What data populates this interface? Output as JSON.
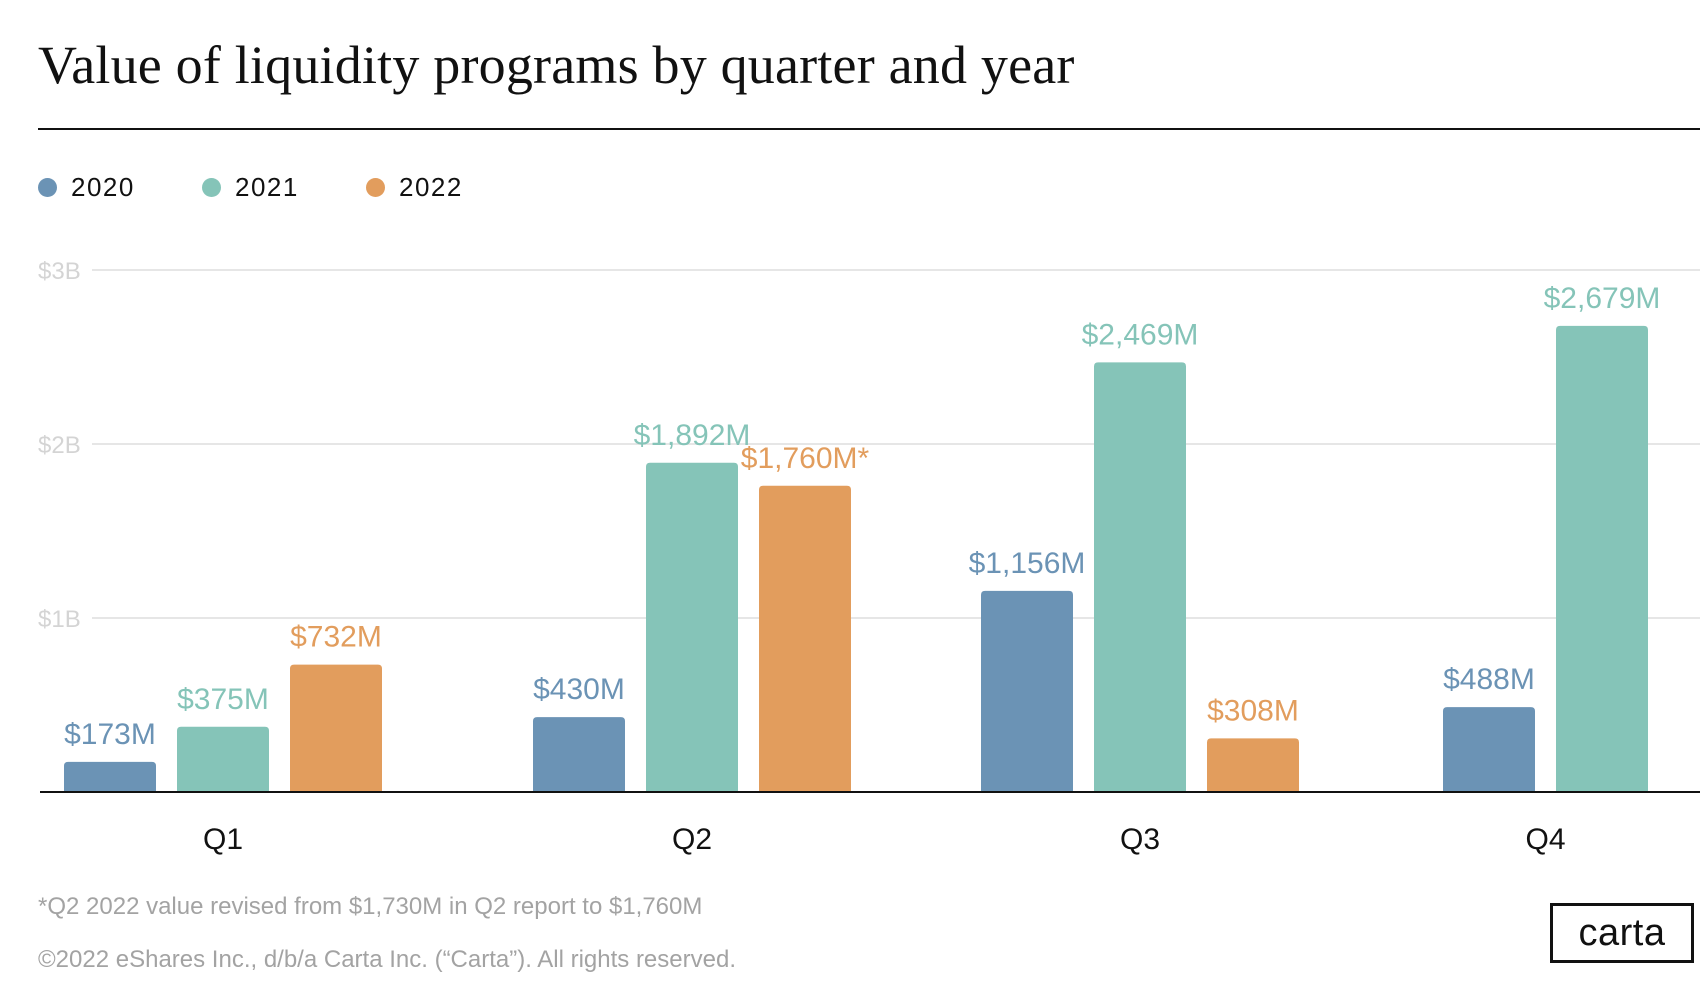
{
  "chart_data": {
    "type": "bar",
    "title": "Value of liquidity programs by quarter and year",
    "xlabel": "",
    "ylabel": "",
    "categories": [
      "Q1",
      "Q2",
      "Q3",
      "Q4"
    ],
    "series": [
      {
        "name": "2020",
        "color": "#6b93b5",
        "values": [
          173,
          430,
          1156,
          488
        ],
        "labels": [
          "$173M",
          "$430M",
          "$1,156M",
          "$488M"
        ]
      },
      {
        "name": "2021",
        "color": "#85c4b8",
        "values": [
          375,
          1892,
          2469,
          2679
        ],
        "labels": [
          "$375M",
          "$1,892M",
          "$2,469M",
          "$2,679M"
        ]
      },
      {
        "name": "2022",
        "color": "#e29d5d",
        "values": [
          732,
          1760,
          308,
          null
        ],
        "labels": [
          "$732M",
          "$1,760M*",
          "$308M",
          null
        ]
      }
    ],
    "ylim": [
      0,
      3000
    ],
    "yticks": [
      {
        "value": 1000,
        "label": "$1B"
      },
      {
        "value": 2000,
        "label": "$2B"
      },
      {
        "value": 3000,
        "label": "$3B"
      }
    ],
    "grid": true,
    "legend_position": "top-left",
    "footnote": "*Q2 2022 value revised from $1,730M in Q2 report to $1,760M"
  },
  "footer": {
    "copyright": "©2022 eShares Inc., d/b/a Carta Inc. (“Carta”). All rights reserved.",
    "logo_text": "carta"
  },
  "colors": {
    "gridline": "#e6e6e6",
    "tick_label": "#d4d4d4",
    "axis": "#111111"
  }
}
